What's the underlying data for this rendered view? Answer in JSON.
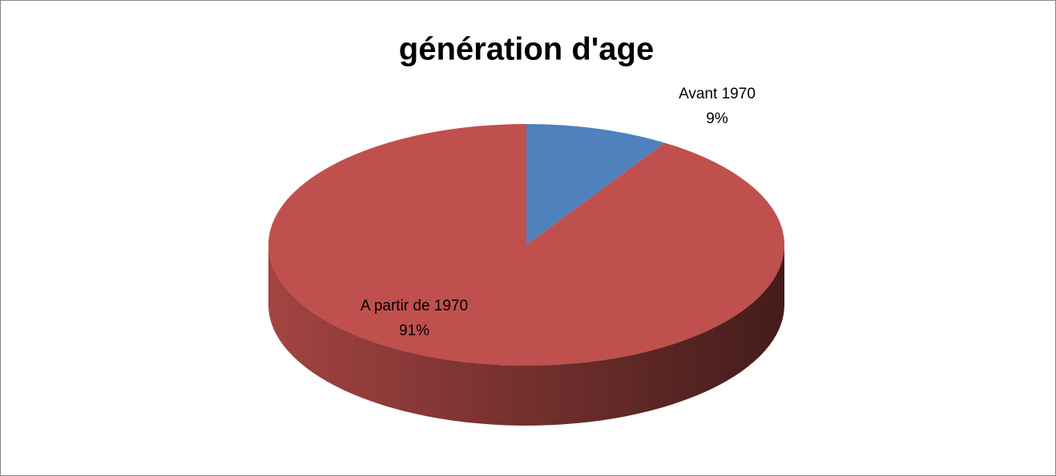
{
  "chart_data": {
    "type": "pie3d",
    "title": "génération d'age",
    "categories": [
      "Avant 1970",
      "A partir de 1970"
    ],
    "values": [
      9,
      91
    ],
    "value_labels": [
      "9%",
      "91%"
    ],
    "colors": [
      "#4f81bd",
      "#c0504d"
    ]
  }
}
